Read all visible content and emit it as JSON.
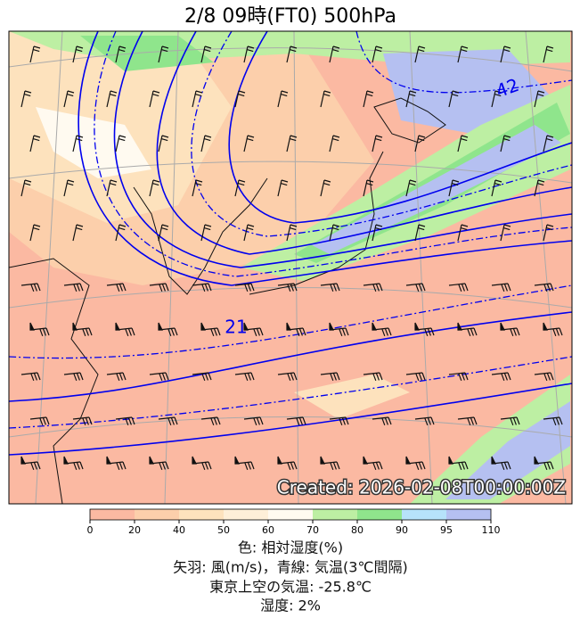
{
  "header": {
    "title": "2/8  09時(FT0)     500hPa"
  },
  "map": {
    "created": "Created: 2026-02-08T00:00:00Z",
    "contour_labels": [
      "42",
      "21"
    ]
  },
  "colorbar": {
    "levels": [
      0,
      20,
      40,
      50,
      60,
      70,
      80,
      90,
      95,
      110
    ],
    "colors": [
      "#fbb9a2",
      "#fccfab",
      "#fde2bd",
      "#feefd8",
      "#fffaf0",
      "#bdefa3",
      "#8fe58c",
      "#b6e2fa",
      "#b5c0f1"
    ]
  },
  "captions": [
    "色: 相対湿度(%)",
    "矢羽: 風(m/s)，青線: 気温(3℃間隔)",
    "東京上空の気温: -25.8℃",
    "湿度: 2%"
  ]
}
